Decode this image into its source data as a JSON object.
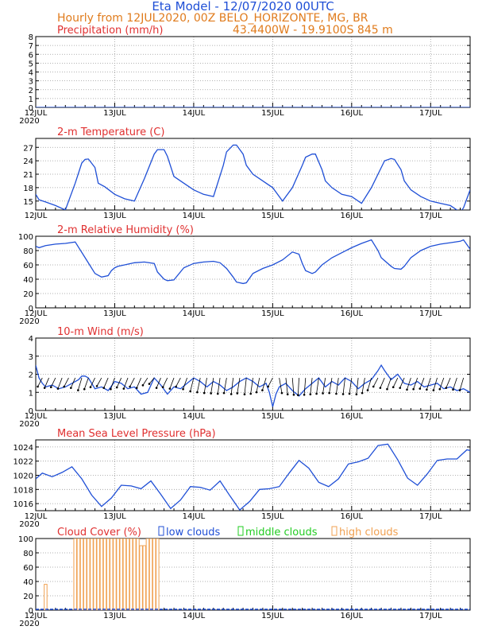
{
  "header": {
    "title": "Eta Model - 12/07/2020 00UTC",
    "line2": "Hourly from 12JUL2020, 00Z  BELO_HORIZONTE, MG, BR",
    "line3": "43.4400W - 19.9100S    845  m"
  },
  "x_axis": {
    "labels": [
      "12JUL",
      "13JUL",
      "14JUL",
      "15JUL",
      "16JUL",
      "17JUL"
    ],
    "year": "2020"
  },
  "colors": {
    "line": "#1f4fd6",
    "title": "#e03030",
    "cloud_high": "#f0a050",
    "cloud_low": "#1f4fd6",
    "cloud_mid": "#22cc22"
  },
  "chart_data": [
    {
      "type": "line",
      "title": "Precipitation (mm/h)",
      "ylim": [
        0,
        8
      ],
      "yticks": [
        0,
        1,
        2,
        3,
        4,
        5,
        6,
        7,
        8
      ],
      "series": [
        {
          "x": [
            0,
            132
          ],
          "values": [
            0,
            0
          ]
        }
      ]
    },
    {
      "type": "line",
      "title": "2-m Temperature (C)",
      "ylim": [
        13,
        29
      ],
      "yticks": [
        15,
        18,
        21,
        24,
        27
      ],
      "series": [
        {
          "x": [
            0,
            1,
            3,
            6,
            9,
            12,
            14,
            15,
            16,
            18,
            19,
            21,
            24,
            27,
            30,
            33,
            36,
            37,
            39,
            40,
            42,
            45,
            48,
            51,
            54,
            57,
            58,
            60,
            61,
            63,
            64,
            66,
            69,
            72,
            75,
            78,
            81,
            82,
            84,
            85,
            87,
            88,
            90,
            93,
            96,
            99,
            102,
            105,
            106,
            108,
            109,
            111,
            112,
            114,
            117,
            120,
            123,
            126,
            129,
            130,
            132
          ],
          "values": [
            16.5,
            15.3,
            14.8,
            14,
            13,
            19,
            23.5,
            24.3,
            24.4,
            22.5,
            19,
            18.2,
            16.5,
            15.5,
            15,
            20,
            25.5,
            26.5,
            26.5,
            25,
            20.5,
            19,
            17.5,
            16.5,
            16,
            23,
            26,
            27.5,
            27.5,
            25.5,
            23,
            21,
            19.5,
            18,
            15,
            18,
            23,
            24.8,
            25.5,
            25.5,
            22,
            19.5,
            18,
            16.5,
            16,
            14.5,
            18,
            22.5,
            24,
            24.5,
            24.3,
            22,
            19.5,
            17.5,
            16,
            15,
            14.5,
            14,
            12.5,
            13.5,
            17.5
          ]
        }
      ]
    },
    {
      "type": "line",
      "title": "2-m Relative Humidity (%)",
      "ylim": [
        0,
        100
      ],
      "yticks": [
        0,
        20,
        40,
        60,
        80,
        100
      ],
      "series": [
        {
          "x": [
            0,
            1,
            3,
            6,
            9,
            12,
            15,
            18,
            20,
            22,
            23,
            24,
            25,
            27,
            30,
            33,
            36,
            37,
            39,
            40,
            42,
            45,
            48,
            51,
            54,
            56,
            58,
            60,
            61,
            63,
            64,
            66,
            69,
            72,
            75,
            78,
            80,
            81,
            82,
            84,
            85,
            87,
            90,
            93,
            96,
            99,
            102,
            104,
            105,
            108,
            109,
            111,
            112,
            114,
            117,
            120,
            123,
            126,
            129,
            130,
            132
          ],
          "values": [
            86,
            84,
            87,
            89,
            90,
            92,
            70,
            48,
            43,
            45,
            52,
            56,
            58,
            60,
            63,
            64,
            62,
            50,
            40,
            38,
            39,
            56,
            62,
            64,
            65,
            63,
            55,
            43,
            36,
            34,
            35,
            48,
            55,
            60,
            67,
            78,
            75,
            62,
            52,
            48,
            50,
            60,
            70,
            77,
            84,
            90,
            95,
            80,
            70,
            58,
            55,
            54,
            58,
            70,
            80,
            86,
            89,
            91,
            93,
            95,
            82
          ]
        }
      ]
    },
    {
      "type": "line",
      "title": "10-m Wind (m/s)",
      "ylim": [
        0,
        4
      ],
      "yticks": [
        0,
        1,
        2,
        3,
        4
      ],
      "series": [
        {
          "x": [
            0,
            1,
            2,
            3,
            5,
            7,
            9,
            11,
            13,
            14,
            15,
            16,
            18,
            20,
            22,
            24,
            26,
            28,
            30,
            32,
            34,
            36,
            38,
            40,
            42,
            44,
            46,
            48,
            50,
            52,
            54,
            56,
            58,
            60,
            62,
            64,
            66,
            68,
            70,
            71,
            72,
            73,
            74,
            76,
            78,
            80,
            82,
            84,
            86,
            88,
            90,
            92,
            94,
            96,
            98,
            100,
            102,
            104,
            105,
            106,
            108,
            110,
            112,
            114,
            116,
            118,
            120,
            122,
            124,
            126,
            128,
            130,
            132
          ],
          "values": [
            2.5,
            1.8,
            1.5,
            1.3,
            1.4,
            1.2,
            1.3,
            1.5,
            1.7,
            1.9,
            1.9,
            1.8,
            1.2,
            1.3,
            1.1,
            1.6,
            1.5,
            1.2,
            1.3,
            0.9,
            1.0,
            1.8,
            1.4,
            0.9,
            1.3,
            1.2,
            1.5,
            1.8,
            1.6,
            1.3,
            1.6,
            1.4,
            1.1,
            1.3,
            1.6,
            1.8,
            1.6,
            1.3,
            1.5,
            1.0,
            0.2,
            0.9,
            1.3,
            1.5,
            1.1,
            0.8,
            1.2,
            1.5,
            1.8,
            1.3,
            1.6,
            1.4,
            1.8,
            1.6,
            1.2,
            1.5,
            1.7,
            2.2,
            2.5,
            2.2,
            1.7,
            2.0,
            1.5,
            1.4,
            1.6,
            1.3,
            1.4,
            1.5,
            1.2,
            1.3,
            1.1,
            1.2,
            1.0
          ]
        }
      ],
      "barbs": [
        {
          "x": 2,
          "dir": -60
        },
        {
          "x": 4,
          "dir": -55
        },
        {
          "x": 6,
          "dir": -58
        },
        {
          "x": 8,
          "dir": -52
        },
        {
          "x": 10,
          "dir": -60
        },
        {
          "x": 12,
          "dir": -55
        },
        {
          "x": 14,
          "dir": -45
        },
        {
          "x": 16,
          "dir": -50
        },
        {
          "x": 18,
          "dir": -58
        },
        {
          "x": 20,
          "dir": -62
        },
        {
          "x": 22,
          "dir": -55
        },
        {
          "x": 24,
          "dir": -50
        },
        {
          "x": 26,
          "dir": -57
        },
        {
          "x": 28,
          "dir": -52
        },
        {
          "x": 30,
          "dir": -60
        },
        {
          "x": 32,
          "dir": -55
        },
        {
          "x": 34,
          "dir": -65
        },
        {
          "x": 36,
          "dir": -70
        },
        {
          "x": 38,
          "dir": -55
        },
        {
          "x": 40,
          "dir": -58
        },
        {
          "x": 42,
          "dir": -52
        },
        {
          "x": 44,
          "dir": -60
        },
        {
          "x": 46,
          "dir": -50
        },
        {
          "x": 48,
          "dir": -40
        },
        {
          "x": 50,
          "dir": -35
        },
        {
          "x": 52,
          "dir": -30
        },
        {
          "x": 54,
          "dir": -28
        },
        {
          "x": 56,
          "dir": -25
        },
        {
          "x": 58,
          "dir": -30
        },
        {
          "x": 60,
          "dir": -22
        },
        {
          "x": 62,
          "dir": -28
        },
        {
          "x": 64,
          "dir": -20
        },
        {
          "x": 66,
          "dir": -25
        },
        {
          "x": 68,
          "dir": -35
        },
        {
          "x": 70,
          "dir": -45
        },
        {
          "x": 72,
          "dir": -60
        },
        {
          "x": 74,
          "dir": 30
        },
        {
          "x": 76,
          "dir": 20
        },
        {
          "x": 78,
          "dir": 15
        },
        {
          "x": 80,
          "dir": -10
        },
        {
          "x": 82,
          "dir": -15
        },
        {
          "x": 84,
          "dir": -20
        },
        {
          "x": 86,
          "dir": -25
        },
        {
          "x": 88,
          "dir": -28
        },
        {
          "x": 90,
          "dir": -30
        },
        {
          "x": 92,
          "dir": -25
        },
        {
          "x": 94,
          "dir": -22
        },
        {
          "x": 96,
          "dir": -25
        },
        {
          "x": 98,
          "dir": -20
        },
        {
          "x": 100,
          "dir": -30
        },
        {
          "x": 102,
          "dir": -45
        },
        {
          "x": 104,
          "dir": -60
        },
        {
          "x": 106,
          "dir": -55
        },
        {
          "x": 108,
          "dir": -50
        },
        {
          "x": 110,
          "dir": -58
        },
        {
          "x": 112,
          "dir": -55
        },
        {
          "x": 114,
          "dir": -48
        },
        {
          "x": 116,
          "dir": -50
        },
        {
          "x": 118,
          "dir": -52
        },
        {
          "x": 120,
          "dir": -48
        },
        {
          "x": 122,
          "dir": -45
        },
        {
          "x": 124,
          "dir": -50
        },
        {
          "x": 126,
          "dir": -55
        },
        {
          "x": 128,
          "dir": -48
        },
        {
          "x": 130,
          "dir": -45
        }
      ]
    },
    {
      "type": "line",
      "title": "Mean Sea Level Pressure (hPa)",
      "ylim": [
        1015,
        1025
      ],
      "yticks": [
        1016,
        1018,
        1020,
        1022,
        1024
      ],
      "series": [
        {
          "x": [
            0,
            2,
            5,
            8,
            11,
            14,
            17,
            20,
            23,
            26,
            29,
            32,
            35,
            38,
            41,
            44,
            47,
            50,
            53,
            56,
            59,
            62,
            65,
            68,
            71,
            74,
            77,
            80,
            83,
            86,
            89,
            92,
            95,
            98,
            101,
            104,
            107,
            110,
            113,
            116,
            119,
            122,
            125,
            128,
            131,
            132
          ],
          "values": [
            1019.5,
            1020.3,
            1019.8,
            1020.4,
            1021.2,
            1019.5,
            1017.2,
            1015.6,
            1016.8,
            1018.6,
            1018.5,
            1018.1,
            1019.2,
            1017.3,
            1015.3,
            1016.5,
            1018.4,
            1018.3,
            1017.9,
            1019.2,
            1017.1,
            1015.1,
            1016.3,
            1018.0,
            1018.1,
            1018.4,
            1020.3,
            1022.1,
            1021.0,
            1019.0,
            1018.4,
            1019.5,
            1021.6,
            1021.9,
            1022.4,
            1024.2,
            1024.4,
            1022.2,
            1019.6,
            1018.6,
            1020.2,
            1022.1,
            1022.3,
            1022.3,
            1023.6,
            1023.5
          ]
        }
      ]
    },
    {
      "type": "bar",
      "title": "Cloud Cover (%)",
      "ylim": [
        0,
        100
      ],
      "yticks": [
        0,
        20,
        40,
        60,
        80,
        100
      ],
      "legend": [
        {
          "label": "low clouds",
          "color": "#1f4fd6"
        },
        {
          "label": "middle clouds",
          "color": "#22cc22"
        },
        {
          "label": "high clouds",
          "color": "#f0a050"
        }
      ],
      "series": [
        {
          "name": "high clouds",
          "x": [
            3,
            12,
            13,
            14,
            15,
            16,
            17,
            18,
            19,
            20,
            21,
            22,
            23,
            24,
            25,
            26,
            27,
            28,
            29,
            30,
            31,
            32,
            33,
            34,
            35,
            36,
            37
          ],
          "values": [
            36,
            100,
            100,
            100,
            100,
            100,
            100,
            100,
            100,
            100,
            100,
            100,
            100,
            100,
            100,
            100,
            100,
            100,
            100,
            100,
            100,
            90,
            90,
            100,
            100,
            100,
            100
          ]
        }
      ]
    }
  ]
}
